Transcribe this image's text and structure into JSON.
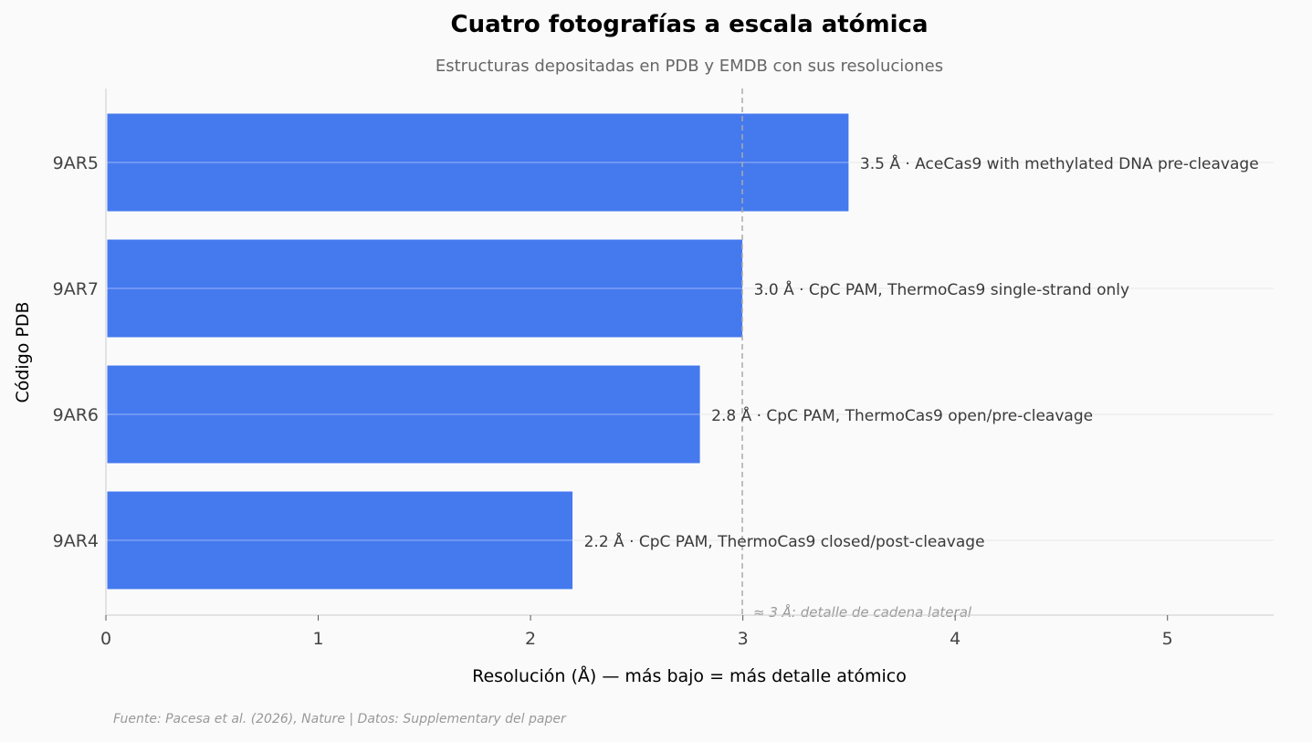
{
  "title": "Cuatro fotografías a escala atómica",
  "subtitle": "Estructuras depositadas en PDB y EMDB con sus resoluciones",
  "source": "Fuente: Pacesa et al. (2026), Nature | Datos: Supplementary del paper",
  "colors": {
    "bar": "#4579ee",
    "background": "#fafafa",
    "reference_line": "#aaaaaa"
  },
  "chart_data": {
    "type": "bar",
    "orientation": "horizontal",
    "title": "Cuatro fotografías a escala atómica",
    "subtitle": "Estructuras depositadas en PDB y EMDB con sus resoluciones",
    "xlabel": "Resolución (Å) — más bajo = más detalle atómico",
    "ylabel": "Código PDB",
    "xlim": [
      0,
      5.5
    ],
    "xticks": [
      0,
      1,
      2,
      3,
      4,
      5
    ],
    "grid": "horizontal",
    "categories": [
      "9AR5",
      "9AR7",
      "9AR6",
      "9AR4"
    ],
    "values": [
      3.5,
      3.0,
      2.8,
      2.2
    ],
    "labels": [
      "3.5 Å · AceCas9 with methylated DNA pre-cleavage",
      "3.0 Å · CpC PAM, ThermoCas9 single-strand only",
      "2.8 Å · CpC PAM, ThermoCas9 open/pre-cleavage",
      "2.2 Å · CpC PAM, ThermoCas9 closed/post-cleavage"
    ],
    "reference_line": {
      "x": 3,
      "style": "dashed",
      "annotation": "≈ 3 Å: detalle de cadena lateral"
    },
    "source": "Fuente: Pacesa et al. (2026), Nature | Datos: Supplementary del paper"
  }
}
